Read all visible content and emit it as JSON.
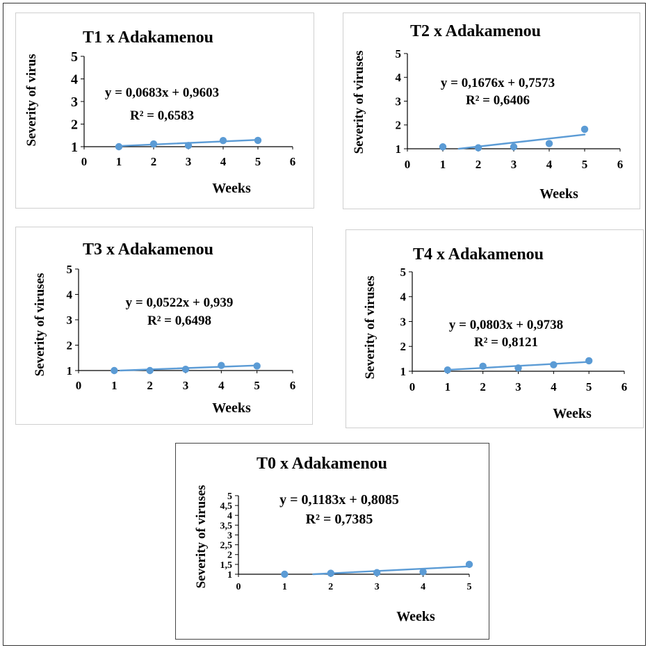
{
  "chart_data": [
    {
      "type": "scatter",
      "title": "T1 x Adakamenou",
      "xlabel": "Weeks",
      "ylabel": "Severity of virus",
      "xlim": [
        0,
        6
      ],
      "ylim": [
        1,
        5
      ],
      "xticks": [
        "0",
        "1",
        "2",
        "3",
        "4",
        "5",
        "6"
      ],
      "yticks": [
        "1",
        "2",
        "3",
        "4",
        "5"
      ],
      "points": [
        {
          "x": 1,
          "y": 1.0
        },
        {
          "x": 2,
          "y": 1.12
        },
        {
          "x": 3,
          "y": 1.05
        },
        {
          "x": 4,
          "y": 1.27
        },
        {
          "x": 5,
          "y": 1.28
        }
      ],
      "trendline": {
        "slope": 0.0683,
        "intercept": 0.9603,
        "x_range": [
          1,
          5
        ]
      },
      "equation": "y = 0,0683x + 0,9603",
      "r2": "R² = 0,6583"
    },
    {
      "type": "scatter",
      "title": "T2 x Adakamenou",
      "xlabel": "Weeks",
      "ylabel": "Severity of viruses",
      "xlim": [
        0,
        6
      ],
      "ylim": [
        1,
        5
      ],
      "xticks": [
        "0",
        "1",
        "2",
        "3",
        "4",
        "5",
        "6"
      ],
      "yticks": [
        "1",
        "2",
        "3",
        "4",
        "5"
      ],
      "points": [
        {
          "x": 1,
          "y": 1.08
        },
        {
          "x": 2,
          "y": 1.04
        },
        {
          "x": 3,
          "y": 1.08
        },
        {
          "x": 4,
          "y": 1.22
        },
        {
          "x": 5,
          "y": 1.82
        }
      ],
      "trendline": {
        "slope": 0.1676,
        "intercept": 0.7573,
        "x_range": [
          1,
          5
        ]
      },
      "equation": "y = 0,1676x + 0,7573",
      "r2": "R² = 0,6406"
    },
    {
      "type": "scatter",
      "title": "T3 x Adakamenou",
      "xlabel": "Weeks",
      "ylabel": "Severity of viruses",
      "xlim": [
        0,
        6
      ],
      "ylim": [
        1,
        5
      ],
      "xticks": [
        "0",
        "1",
        "2",
        "3",
        "4",
        "5",
        "6"
      ],
      "yticks": [
        "1",
        "2",
        "3",
        "4",
        "5"
      ],
      "points": [
        {
          "x": 1,
          "y": 1.0
        },
        {
          "x": 2,
          "y": 1.0
        },
        {
          "x": 3,
          "y": 1.05
        },
        {
          "x": 4,
          "y": 1.2
        },
        {
          "x": 5,
          "y": 1.18
        }
      ],
      "trendline": {
        "slope": 0.0522,
        "intercept": 0.939,
        "x_range": [
          1,
          5
        ]
      },
      "equation": "y = 0,0522x + 0,939",
      "r2": "R² = 0,6498"
    },
    {
      "type": "scatter",
      "title": "T4 x Adakamenou",
      "xlabel": "Weeks",
      "ylabel": "Severity of viruses",
      "xlim": [
        0,
        6
      ],
      "ylim": [
        1,
        5
      ],
      "xticks": [
        "0",
        "1",
        "2",
        "3",
        "4",
        "5",
        "6"
      ],
      "yticks": [
        "1",
        "2",
        "3",
        "4",
        "5"
      ],
      "points": [
        {
          "x": 1,
          "y": 1.05
        },
        {
          "x": 2,
          "y": 1.2
        },
        {
          "x": 3,
          "y": 1.13
        },
        {
          "x": 4,
          "y": 1.26
        },
        {
          "x": 5,
          "y": 1.42
        }
      ],
      "trendline": {
        "slope": 0.0803,
        "intercept": 0.9738,
        "x_range": [
          1,
          5
        ]
      },
      "equation": "y = 0,0803x + 0,9738",
      "r2": "R² = 0,8121"
    },
    {
      "type": "scatter",
      "title": "T0 x Adakamenou",
      "xlabel": "Weeks",
      "ylabel": "Severity of viruses",
      "xlim": [
        0,
        5
      ],
      "ylim": [
        1,
        5
      ],
      "xticks": [
        "0",
        "1",
        "2",
        "3",
        "4",
        "5"
      ],
      "yticks": [
        "1",
        "1,5",
        "2",
        "2,5",
        "3",
        "3,5",
        "4",
        "4,5",
        "5"
      ],
      "points": [
        {
          "x": 1,
          "y": 1.0
        },
        {
          "x": 2,
          "y": 1.05
        },
        {
          "x": 3,
          "y": 1.08
        },
        {
          "x": 4,
          "y": 1.12
        },
        {
          "x": 5,
          "y": 1.5
        }
      ],
      "trendline": {
        "slope": 0.1183,
        "intercept": 0.8085,
        "x_range": [
          1,
          5
        ]
      },
      "equation": "y = 0,1183x + 0,8085",
      "r2": "R² = 0,7385"
    }
  ],
  "colors": {
    "marker": "#5b9bd5",
    "trendline": "#5b9bd5",
    "axis": "#000000",
    "text": "#000000"
  }
}
